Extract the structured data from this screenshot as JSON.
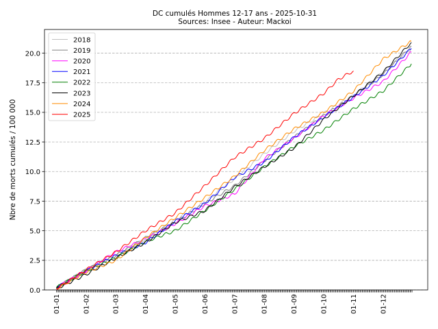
{
  "chart_data": {
    "type": "line",
    "title": "DC cumulés Hommes 12-17 ans  - 2025-10-31",
    "subtitle": "Sources: Insee - Auteur: Mackoi",
    "xlabel": "",
    "ylabel": "Nbre de morts cumulés / 100 000",
    "ylim": [
      0,
      22
    ],
    "yticks": [
      "0.0",
      "2.5",
      "5.0",
      "7.5",
      "10.0",
      "12.5",
      "15.0",
      "17.5",
      "20.0"
    ],
    "ytick_values": [
      0,
      2.5,
      5,
      7.5,
      10,
      12.5,
      15,
      17.5,
      20
    ],
    "xlim": [
      -0.4,
      12.5
    ],
    "xtick_labels": [
      "01-01",
      "01-02",
      "01-03",
      "01-04",
      "01-05",
      "01-06",
      "01-07",
      "01-08",
      "01-09",
      "01-10",
      "01-11",
      "01-12"
    ],
    "xtick_values": [
      0,
      1,
      2,
      3,
      4,
      5,
      6,
      7,
      8,
      9,
      10,
      11
    ],
    "x_unit": "months since 01-01",
    "grid": "horizontal dashed",
    "legend_position": "top-left",
    "series": [
      {
        "name": "2018",
        "color": "#c0c0c0",
        "x": [
          0,
          1,
          2,
          3,
          4,
          5,
          6,
          7,
          8,
          9,
          10,
          11,
          11.95
        ],
        "y": [
          0.2,
          1.7,
          3.0,
          4.3,
          5.9,
          7.4,
          9.4,
          11.5,
          13.4,
          14.9,
          16.4,
          18.4,
          20.4
        ]
      },
      {
        "name": "2019",
        "color": "#808080",
        "x": [
          0,
          1,
          2,
          3,
          4,
          5,
          6,
          7,
          8,
          9,
          10,
          11,
          11.95
        ],
        "y": [
          0.2,
          1.7,
          2.9,
          4.4,
          5.7,
          7.3,
          8.8,
          10.9,
          12.9,
          14.7,
          16.4,
          18.2,
          20.6
        ]
      },
      {
        "name": "2020",
        "color": "#ff00ff",
        "x": [
          0,
          1,
          2,
          3,
          4,
          5,
          6,
          7,
          8,
          9,
          10,
          11,
          11.95
        ],
        "y": [
          0.2,
          1.6,
          3.2,
          4.3,
          5.6,
          7.1,
          8.1,
          11.1,
          12.8,
          14.7,
          16.2,
          17.6,
          20.1
        ]
      },
      {
        "name": "2021",
        "color": "#0000ff",
        "x": [
          0,
          1,
          2,
          3,
          4,
          5,
          6,
          7,
          8,
          9,
          10,
          11,
          11.95
        ],
        "y": [
          0.2,
          1.6,
          2.9,
          4.0,
          5.8,
          7.3,
          9.5,
          10.8,
          12.9,
          14.6,
          16.3,
          18.1,
          20.4
        ]
      },
      {
        "name": "2022",
        "color": "#008000",
        "x": [
          0,
          1,
          2,
          3,
          4,
          5,
          6,
          7,
          8,
          9,
          10,
          11,
          11.95
        ],
        "y": [
          0.2,
          1.6,
          2.7,
          4.1,
          5.0,
          6.7,
          8.5,
          10.4,
          12.1,
          13.5,
          15.3,
          16.8,
          19.1
        ]
      },
      {
        "name": "2023",
        "color": "#000000",
        "x": [
          0,
          1,
          2,
          3,
          4,
          5,
          6,
          7,
          8,
          9,
          10,
          11,
          11.95
        ],
        "y": [
          0.1,
          1.3,
          2.7,
          4.0,
          5.7,
          6.7,
          8.7,
          10.4,
          12.0,
          14.4,
          16.4,
          18.4,
          20.9
        ]
      },
      {
        "name": "2024",
        "color": "#ff8c00",
        "x": [
          0,
          1,
          2,
          3,
          4,
          5,
          6,
          7,
          8,
          9,
          10,
          11,
          11.95
        ],
        "y": [
          0.1,
          1.5,
          2.5,
          4.4,
          6.1,
          7.8,
          9.6,
          11.8,
          13.6,
          15.0,
          16.8,
          19.5,
          21.0
        ]
      },
      {
        "name": "2025",
        "color": "#ff0000",
        "x": [
          0,
          1,
          2,
          3,
          4,
          5,
          6,
          7,
          8,
          9,
          9.5,
          10
        ],
        "y": [
          0.1,
          1.7,
          3.2,
          5.0,
          6.5,
          8.8,
          11.2,
          12.8,
          14.9,
          16.6,
          17.8,
          18.5
        ]
      }
    ]
  }
}
